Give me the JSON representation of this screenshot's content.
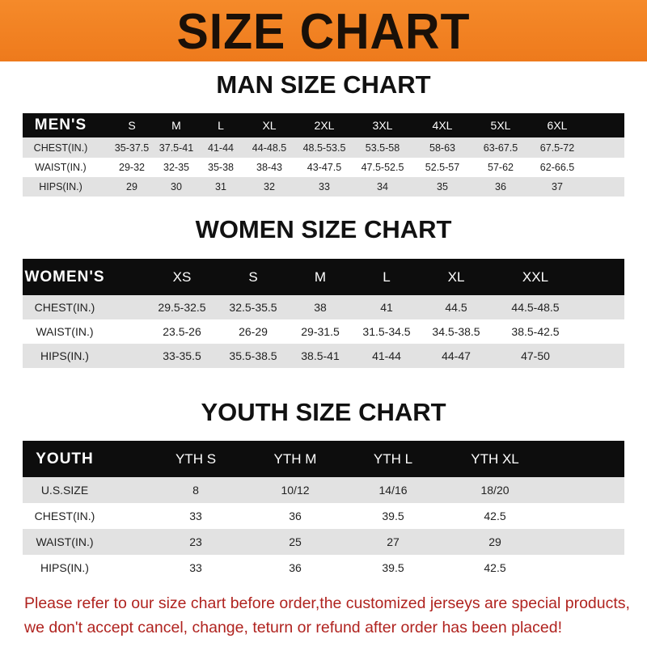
{
  "banner_title": "SIZE CHART",
  "men": {
    "title": "MAN SIZE CHART",
    "header": [
      "MEN'S",
      "S",
      "M",
      "L",
      "XL",
      "2XL",
      "3XL",
      "4XL",
      "5XL",
      "6XL"
    ],
    "rows": [
      [
        "CHEST(IN.)",
        "35-37.5",
        "37.5-41",
        "41-44",
        "44-48.5",
        "48.5-53.5",
        "53.5-58",
        "58-63",
        "63-67.5",
        "67.5-72"
      ],
      [
        "WAIST(IN.)",
        "29-32",
        "32-35",
        "35-38",
        "38-43",
        "43-47.5",
        "47.5-52.5",
        "52.5-57",
        "57-62",
        "62-66.5"
      ],
      [
        "HIPS(IN.)",
        "29",
        "30",
        "31",
        "32",
        "33",
        "34",
        "35",
        "36",
        "37"
      ]
    ]
  },
  "women": {
    "title": "WOMEN SIZE CHART",
    "header": [
      "WOMEN'S",
      "XS",
      "S",
      "M",
      "L",
      "XL",
      "XXL"
    ],
    "rows": [
      [
        "CHEST(IN.)",
        "29.5-32.5",
        "32.5-35.5",
        "38",
        "41",
        "44.5",
        "44.5-48.5"
      ],
      [
        "WAIST(IN.)",
        "23.5-26",
        "26-29",
        "29-31.5",
        "31.5-34.5",
        "34.5-38.5",
        "38.5-42.5"
      ],
      [
        "HIPS(IN.)",
        "33-35.5",
        "35.5-38.5",
        "38.5-41",
        "41-44",
        "44-47",
        "47-50"
      ]
    ]
  },
  "youth": {
    "title": "YOUTH SIZE CHART",
    "header": [
      "YOUTH",
      "YTH S",
      "YTH M",
      "YTH L",
      "YTH XL"
    ],
    "rows": [
      [
        "U.S.SIZE",
        "8",
        "10/12",
        "14/16",
        "18/20"
      ],
      [
        "CHEST(IN.)",
        "33",
        "36",
        "39.5",
        "42.5"
      ],
      [
        "WAIST(IN.)",
        "23",
        "25",
        "27",
        "29"
      ],
      [
        "HIPS(IN.)",
        "33",
        "36",
        "39.5",
        "42.5"
      ]
    ]
  },
  "notice": [
    "Please refer to our size chart before order,the customized jerseys are special products,",
    "we don't accept cancel, change, teturn or refund after order has been placed!"
  ],
  "colors": {
    "banner": "#f0801f",
    "header_row": "#0d0d0d",
    "stripe": "#e2e2e2",
    "notice": "#b0231f"
  }
}
